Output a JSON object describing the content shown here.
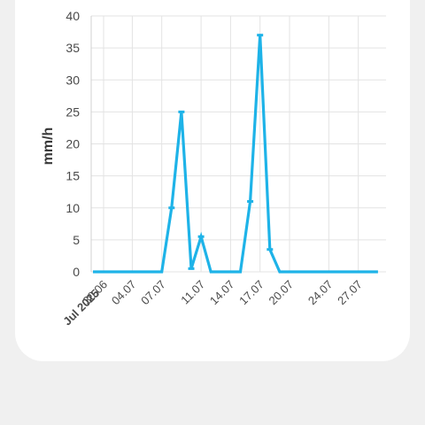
{
  "chart_data": {
    "type": "line",
    "ylabel": "mm/h",
    "xlabel": "",
    "ylim": [
      0,
      40
    ],
    "yticks": [
      "0",
      "5",
      "10",
      "15",
      "20",
      "25",
      "30",
      "35",
      "40"
    ],
    "xticks": [
      "30.06",
      "04.07",
      "07.07",
      "11.07",
      "14.07",
      "17.07",
      "20.07",
      "24.07",
      "27.07"
    ],
    "xtick_month_label": "Jul 2025",
    "grid": true,
    "color": "#1eb3e8",
    "series": [
      {
        "points": [
          {
            "date": "2025-06-30",
            "value": 0
          },
          {
            "date": "2025-07-01",
            "value": 0
          },
          {
            "date": "2025-07-02",
            "value": 0
          },
          {
            "date": "2025-07-03",
            "value": 0
          },
          {
            "date": "2025-07-04",
            "value": 0
          },
          {
            "date": "2025-07-05",
            "value": 0
          },
          {
            "date": "2025-07-06",
            "value": 0
          },
          {
            "date": "2025-07-07",
            "value": 0
          },
          {
            "date": "2025-07-08",
            "value": 10
          },
          {
            "date": "2025-07-09",
            "value": 25
          },
          {
            "date": "2025-07-10",
            "value": 0.5
          },
          {
            "date": "2025-07-11",
            "value": 5.5
          },
          {
            "date": "2025-07-12",
            "value": 0
          },
          {
            "date": "2025-07-13",
            "value": 0
          },
          {
            "date": "2025-07-14",
            "value": 0
          },
          {
            "date": "2025-07-15",
            "value": 0
          },
          {
            "date": "2025-07-16",
            "value": 11
          },
          {
            "date": "2025-07-17",
            "value": 37
          },
          {
            "date": "2025-07-18",
            "value": 3.5
          },
          {
            "date": "2025-07-19",
            "value": 0
          },
          {
            "date": "2025-07-20",
            "value": 0
          },
          {
            "date": "2025-07-21",
            "value": 0
          },
          {
            "date": "2025-07-22",
            "value": 0
          },
          {
            "date": "2025-07-23",
            "value": 0
          },
          {
            "date": "2025-07-24",
            "value": 0
          },
          {
            "date": "2025-07-25",
            "value": 0
          },
          {
            "date": "2025-07-26",
            "value": 0
          },
          {
            "date": "2025-07-27",
            "value": 0
          },
          {
            "date": "2025-07-28",
            "value": 0
          },
          {
            "date": "2025-07-29",
            "value": 0
          }
        ]
      }
    ]
  }
}
